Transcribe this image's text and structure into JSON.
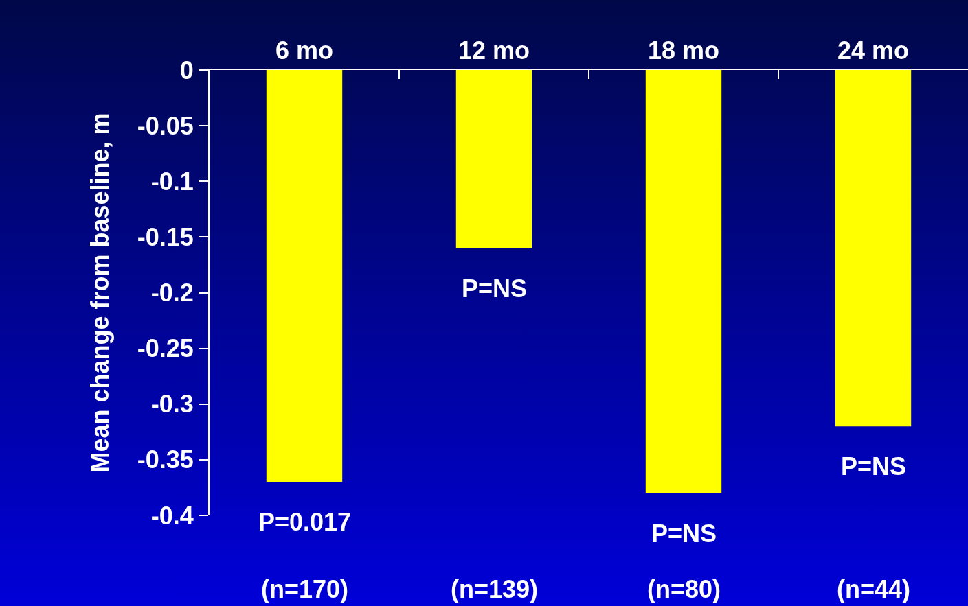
{
  "chart_data": {
    "type": "bar",
    "ylabel": "Mean change from baseline, m",
    "categories": [
      "6 mo",
      "12 mo",
      "18 mo",
      "24 mo"
    ],
    "values": [
      -0.37,
      -0.16,
      -0.38,
      -0.32
    ],
    "color": "#ffff00",
    "ylim": [
      -0.4,
      0
    ],
    "yticks": [
      0,
      -0.05,
      -0.1,
      -0.15,
      -0.2,
      -0.25,
      -0.3,
      -0.35,
      -0.4
    ],
    "annotations": [
      {
        "text": "P=0.017",
        "x": "6 mo",
        "y": -0.37
      },
      {
        "text": "P=NS",
        "x": "12 mo",
        "y": -0.16
      },
      {
        "text": "P=NS",
        "x": "18 mo",
        "y": -0.38
      },
      {
        "text": "P=NS",
        "x": "24 mo",
        "y": -0.32
      },
      "(n=170)",
      "(n=139)",
      "(n=80)",
      "(n=44)"
    ]
  }
}
